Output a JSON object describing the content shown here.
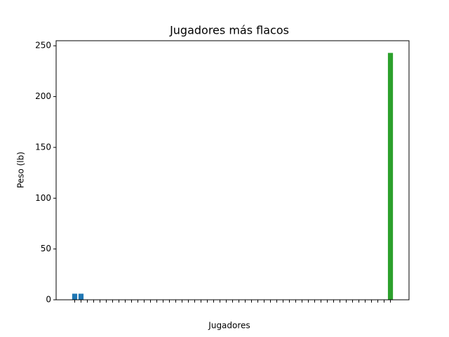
{
  "chart_data": {
    "type": "bar",
    "title": "Jugadores más flacos",
    "x_label": "Jugadores",
    "y_label": "Peso (lb)",
    "categories": [
      null,
      null,
      null,
      null,
      null,
      null,
      null,
      null,
      null,
      null,
      null,
      null,
      null,
      null,
      null,
      null,
      null,
      null,
      null,
      null,
      null,
      null,
      null,
      null,
      null,
      null,
      null,
      null,
      null,
      null,
      null,
      null,
      null,
      null,
      null,
      null,
      null,
      null,
      null,
      null,
      null,
      null,
      null,
      null,
      null,
      null,
      null,
      null,
      null,
      null,
      null
    ],
    "values": [
      6,
      6,
      0,
      0,
      0,
      0,
      0,
      0,
      0,
      0,
      0,
      0,
      0,
      0,
      0,
      0,
      0,
      0,
      0,
      0,
      0,
      0,
      0,
      0,
      0,
      0,
      0,
      0,
      0,
      0,
      0,
      0,
      0,
      0,
      0,
      0,
      0,
      0,
      0,
      0,
      0,
      0,
      0,
      0,
      0,
      0,
      0,
      0,
      0,
      0,
      243
    ],
    "colors": [
      "#1f77b4",
      "#1f77b4",
      "#ff7f0e",
      "#ff7f0e",
      "#ff7f0e",
      "#ff7f0e",
      "#ff7f0e",
      "#ff7f0e",
      "#ff7f0e",
      "#ff7f0e",
      "#ff7f0e",
      "#ff7f0e",
      "#ff7f0e",
      "#ff7f0e",
      "#ff7f0e",
      "#ff7f0e",
      "#ff7f0e",
      "#ff7f0e",
      "#ff7f0e",
      "#ff7f0e",
      "#ff7f0e",
      "#ff7f0e",
      "#ff7f0e",
      "#ff7f0e",
      "#ff7f0e",
      "#ff7f0e",
      "#ff7f0e",
      "#ff7f0e",
      "#ff7f0e",
      "#ff7f0e",
      "#ff7f0e",
      "#ff7f0e",
      "#ff7f0e",
      "#ff7f0e",
      "#ff7f0e",
      "#ff7f0e",
      "#ff7f0e",
      "#ff7f0e",
      "#ff7f0e",
      "#ff7f0e",
      "#ff7f0e",
      "#ff7f0e",
      "#ff7f0e",
      "#ff7f0e",
      "#ff7f0e",
      "#ff7f0e",
      "#ff7f0e",
      "#ff7f0e",
      "#ff7f0e",
      "#ff7f0e",
      "#2ca02c"
    ],
    "ylim": [
      0,
      255
    ],
    "yticks": [
      0,
      50,
      100,
      150,
      200,
      250
    ],
    "grid": false
  }
}
